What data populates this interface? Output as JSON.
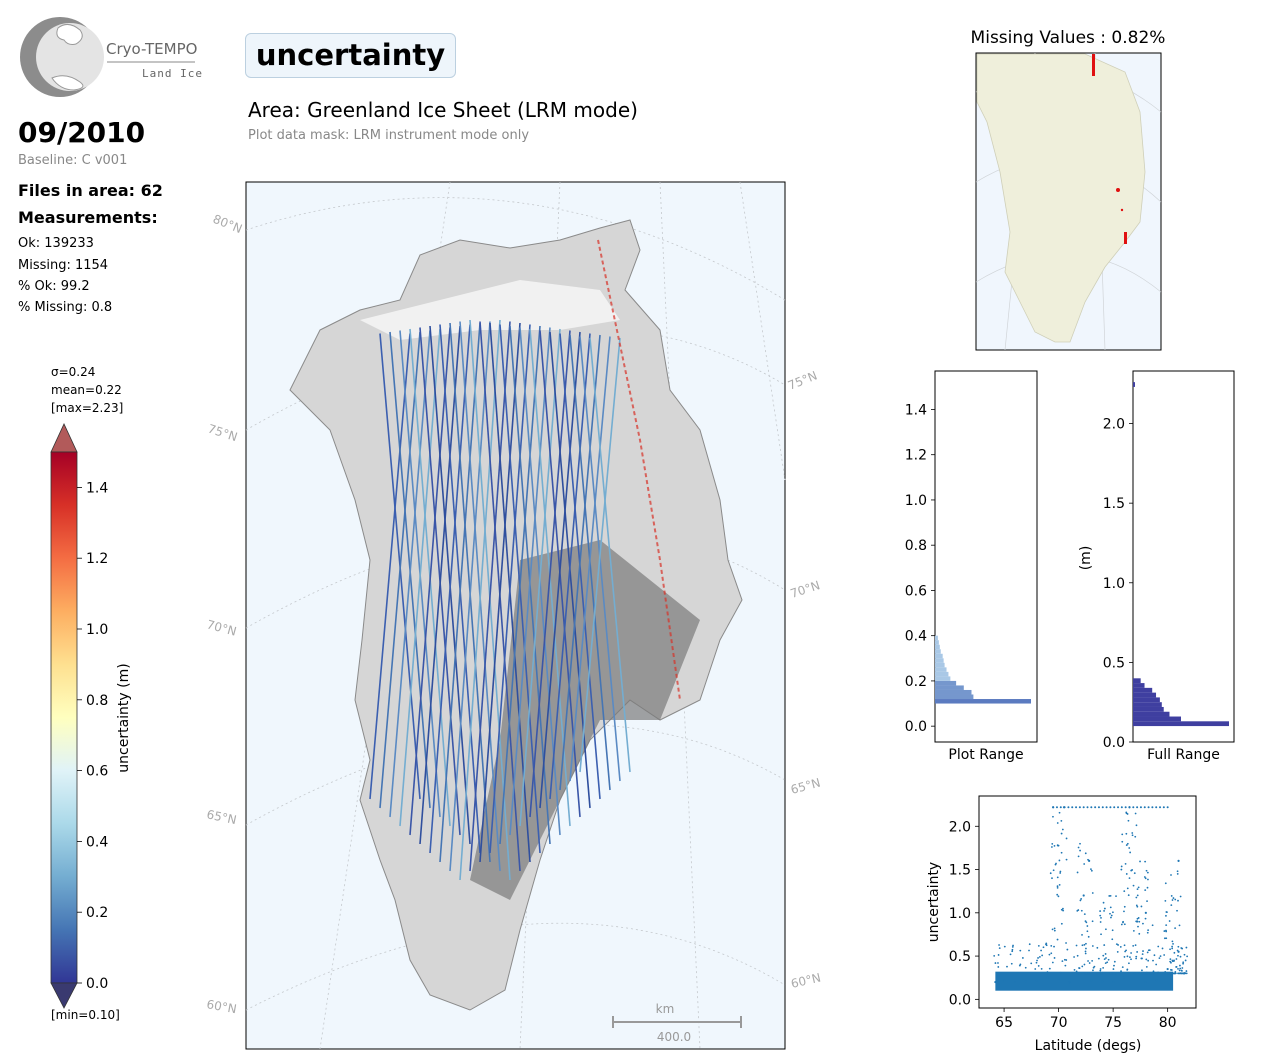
{
  "logo": {
    "title": "Cryo-TEMPO",
    "subtitle": "Land Ice"
  },
  "period": "09/2010",
  "baseline": "Baseline: C v001",
  "files_in_area": "Files in area: 62",
  "measurements_heading": "Measurements:",
  "stats": [
    "Ok: 139233",
    "Missing: 1154",
    "% Ok: 99.2",
    "% Missing: 0.8"
  ],
  "colorbar": {
    "sigma": "σ=0.24",
    "mean": "mean=0.22",
    "max": "[max=2.23]",
    "min": "[min=0.10]",
    "label": "uncertainty (m)",
    "ticks": [
      "0.0",
      "0.2",
      "0.4",
      "0.6",
      "0.8",
      "1.0",
      "1.2",
      "1.4"
    ],
    "range": [
      0.0,
      1.5
    ],
    "colormap": [
      "#313695",
      "#4575b4",
      "#74add1",
      "#abd9e9",
      "#e0f3f8",
      "#ffffbf",
      "#fee090",
      "#fdae61",
      "#f46d43",
      "#d73027",
      "#a50026"
    ]
  },
  "variable": "uncertainty",
  "area_title": "Area: Greenland Ice Sheet (LRM mode)",
  "mask_note": "Plot data mask: LRM instrument mode only",
  "map": {
    "lat_labels_left": [
      "80°N",
      "75°N",
      "70°N",
      "65°N",
      "60°N"
    ],
    "lat_labels_right": [
      "75°N",
      "70°N",
      "65°N",
      "60°N"
    ],
    "scalebar_unit": "km",
    "scalebar_value": "400.0",
    "background": "#f0f7fd"
  },
  "missing_values_title": "Missing Values : 0.82%",
  "hist_plot_range": {
    "xlabel": "Plot Range",
    "yticks": [
      "0.0",
      "0.2",
      "0.4",
      "0.6",
      "0.8",
      "1.0",
      "1.2",
      "1.4"
    ],
    "ylim": [
      -0.07,
      1.57
    ]
  },
  "hist_full_range": {
    "xlabel": "Full Range",
    "ylabel": "(m)",
    "yticks": [
      "0.0",
      "0.5",
      "1.0",
      "1.5",
      "2.0"
    ],
    "ylim": [
      0,
      2.33
    ]
  },
  "scatter": {
    "xlabel": "Latitude (degs)",
    "ylabel": "uncertainty",
    "xticks": [
      "65",
      "70",
      "75",
      "80"
    ],
    "yticks": [
      "0.0",
      "0.5",
      "1.0",
      "1.5",
      "2.0"
    ],
    "color": "#1f77b4"
  },
  "chart_data": [
    {
      "type": "bar",
      "orientation": "horizontal",
      "title": "",
      "xlabel": "Plot Range",
      "ylabel": "",
      "bins": [
        0.1,
        0.12,
        0.14,
        0.16,
        0.18,
        0.2,
        0.22,
        0.24,
        0.26,
        0.28,
        0.3,
        0.32,
        0.34,
        0.36,
        0.38
      ],
      "values": [
        1.0,
        0.4,
        0.38,
        0.3,
        0.22,
        0.16,
        0.14,
        0.12,
        0.1,
        0.09,
        0.08,
        0.06,
        0.05,
        0.04,
        0.03
      ],
      "ylim": [
        -0.07,
        1.57
      ]
    },
    {
      "type": "bar",
      "orientation": "horizontal",
      "title": "",
      "xlabel": "Full Range",
      "ylabel": "(m)",
      "bins": [
        0.1,
        0.13,
        0.16,
        0.19,
        0.22,
        0.25,
        0.28,
        0.31,
        0.34,
        0.37,
        2.23
      ],
      "values": [
        1.0,
        0.5,
        0.38,
        0.32,
        0.3,
        0.28,
        0.24,
        0.2,
        0.12,
        0.08,
        0.01
      ],
      "ylim": [
        0,
        2.33
      ]
    },
    {
      "type": "scatter",
      "title": "",
      "xlabel": "Latitude (degs)",
      "ylabel": "uncertainty",
      "xlim": [
        62.7,
        82.6
      ],
      "ylim": [
        -0.1,
        2.35
      ],
      "x": [
        64.2,
        65,
        66,
        67,
        68,
        69,
        70,
        71,
        72,
        73,
        74,
        75,
        76,
        77,
        78,
        79,
        80,
        81,
        81.5,
        69.5,
        70.5,
        72.3,
        72.8,
        76.5,
        77.2,
        78,
        81
      ],
      "y": [
        0.2,
        0.22,
        0.2,
        0.21,
        0.22,
        0.25,
        0.24,
        0.2,
        0.3,
        0.22,
        0.21,
        0.2,
        0.25,
        0.3,
        0.2,
        0.22,
        0.35,
        0.55,
        0.3,
        2.22,
        2.22,
        1.2,
        1.6,
        2.22,
        0.9,
        1.0,
        1.6
      ]
    }
  ]
}
